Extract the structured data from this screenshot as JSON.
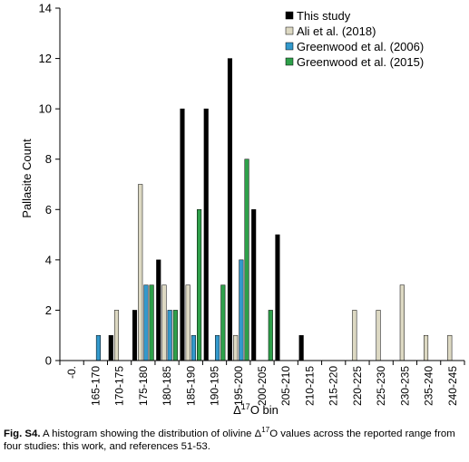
{
  "chart_data": {
    "type": "bar",
    "xlabel_prefix": "Δ",
    "xlabel_sup": "17",
    "xlabel_suffix": "O bin",
    "ylabel": "Pallasite Count",
    "ylim": [
      0,
      14
    ],
    "yticks": [
      0,
      2,
      4,
      6,
      8,
      10,
      12,
      14
    ],
    "grid": false,
    "legend_position": "top-right",
    "categories": [
      "-0.",
      "165-170",
      "170-175",
      "175-180",
      "180-185",
      "185-190",
      "190-195",
      "195-200",
      "200-205",
      "205-210",
      "210-215",
      "215-220",
      "220-225",
      "225-230",
      "230-235",
      "235-240",
      "240-245"
    ],
    "series": [
      {
        "name": "This study",
        "color": "#000000",
        "values": [
          0,
          0,
          1,
          2,
          4,
          10,
          10,
          12,
          6,
          5,
          1,
          0,
          0,
          0,
          0,
          0,
          0
        ]
      },
      {
        "name": "Ali et al. (2018)",
        "color": "#ddd9c3",
        "values": [
          0,
          0,
          2,
          7,
          3,
          3,
          0,
          1,
          0,
          0,
          0,
          0,
          2,
          2,
          3,
          1,
          1
        ]
      },
      {
        "name": "Greenwood et al. (2006)",
        "color": "#3399cc",
        "values": [
          0,
          1,
          0,
          3,
          2,
          1,
          1,
          4,
          0,
          0,
          0,
          0,
          0,
          0,
          0,
          0,
          0
        ]
      },
      {
        "name": "Greenwood et al. (2015)",
        "color": "#2ea04a",
        "values": [
          0,
          0,
          0,
          3,
          2,
          6,
          3,
          8,
          2,
          0,
          0,
          0,
          0,
          0,
          0,
          0,
          0
        ]
      }
    ]
  },
  "caption": {
    "label": "Fig. S4.",
    "text_before_sup": " A histogram showing the distribution of olivine Δ",
    "sup": "17",
    "text_after_sup": "O values across the reported range from four studies: this work, and references 51-53."
  }
}
